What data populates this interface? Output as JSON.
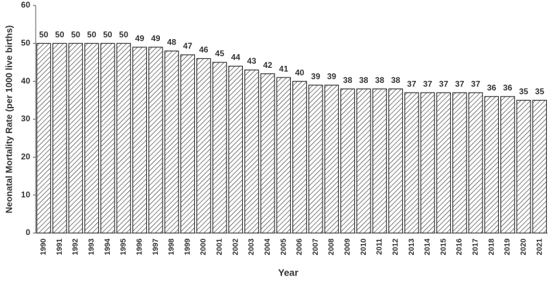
{
  "chart_data": {
    "type": "bar",
    "x_label": "Year",
    "y_label": "Neonatal Mortality Rate (per 1000 live births)",
    "categories": [
      "1990",
      "1991",
      "1992",
      "1993",
      "1994",
      "1995",
      "1996",
      "1997",
      "1998",
      "1999",
      "2000",
      "2001",
      "2002",
      "2003",
      "2004",
      "2005",
      "2006",
      "2007",
      "2008",
      "2009",
      "2010",
      "2011",
      "2012",
      "2013",
      "2014",
      "2015",
      "2016",
      "2017",
      "2018",
      "2019",
      "2020",
      "2021"
    ],
    "values": [
      50,
      50,
      50,
      50,
      50,
      50,
      49,
      49,
      48,
      47,
      46,
      45,
      44,
      43,
      42,
      41,
      40,
      39,
      39,
      38,
      38,
      38,
      38,
      37,
      37,
      37,
      37,
      37,
      36,
      36,
      35,
      35
    ],
    "color": "#333333",
    "ylim": [
      0,
      60
    ],
    "yticks": [
      0,
      10,
      20,
      30,
      40,
      50,
      60
    ],
    "grid": false
  }
}
